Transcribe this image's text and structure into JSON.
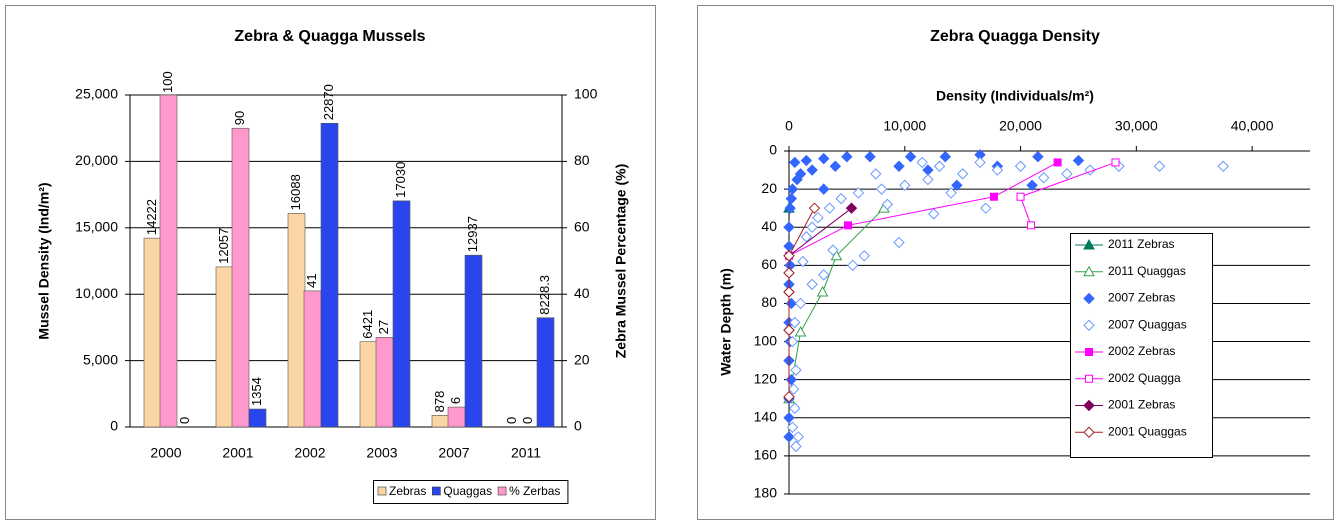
{
  "chart_data": [
    {
      "type": "bar",
      "title": "Zebra & Quagga Mussels",
      "y_label": "Mussel Density (Ind/m²)",
      "y2_label": "Zebra Mussel Percentage (%)",
      "categories": [
        "2000",
        "2001",
        "2002",
        "2003",
        "2007",
        "2011"
      ],
      "series": [
        {
          "name": "Zebras",
          "color": "#fcd5a4",
          "values": [
            14222,
            12057,
            16088,
            6421,
            878,
            0
          ]
        },
        {
          "name": "Quaggas",
          "color": "#2a45ee",
          "values": [
            0,
            1354,
            22870,
            17030,
            12937,
            8228.3
          ]
        },
        {
          "name": "% Zerbas",
          "color": "#ff99cc",
          "axis": "y2",
          "values": [
            100,
            90,
            41,
            27,
            6,
            0
          ]
        }
      ],
      "ylim": [
        0,
        25000
      ],
      "yticks": [
        0,
        {
          "value": 5000,
          "label": "5,000"
        },
        {
          "value": 10000,
          "label": "10,000"
        },
        {
          "value": 15000,
          "label": "15,000"
        },
        {
          "value": 20000,
          "label": "20,000"
        },
        {
          "value": 25000,
          "label": "25,000"
        }
      ],
      "y2lim": [
        0,
        100
      ],
      "y2ticks": [
        0,
        20,
        40,
        60,
        80,
        100
      ],
      "grid": true,
      "legend": "bottom"
    },
    {
      "type": "scatter",
      "title": "Zebra Quagga Density",
      "x_label": "Density (Individuals/m²)",
      "y_label": "Water Depth (m)",
      "xlim": [
        0,
        45000
      ],
      "xticks": [
        0,
        {
          "value": 10000,
          "label": "10,000"
        },
        {
          "value": 20000,
          "label": "20,000"
        },
        {
          "value": 30000,
          "label": "30,000"
        },
        {
          "value": 40000,
          "label": "40,000"
        }
      ],
      "ylim": [
        0,
        180
      ],
      "yticks": [
        0,
        20,
        40,
        60,
        80,
        100,
        120,
        140,
        160,
        180
      ],
      "y_inverted": true,
      "x_axis_position": "top",
      "grid": true,
      "legend": "right",
      "series": [
        {
          "name": "2011 Zebras",
          "color": "#007a5e",
          "marker": "triangle",
          "filled": true,
          "line": true,
          "x": [
            0
          ],
          "values": [
            30
          ]
        },
        {
          "name": "2011 Quaggas",
          "color": "#33a04a",
          "marker": "triangle",
          "filled": false,
          "line": true,
          "x": [
            8200,
            4100,
            2900,
            1000,
            0
          ],
          "values": [
            30,
            55,
            74,
            95,
            130
          ]
        },
        {
          "name": "2007 Zebras",
          "color": "#3366ff",
          "marker": "diamond",
          "filled": true,
          "line": false,
          "x": [
            16500,
            13500,
            10500,
            7000,
            5000,
            3000,
            1500,
            500,
            21500,
            25000,
            18000,
            12000,
            9500,
            4000,
            2000,
            700,
            300,
            200,
            100,
            0,
            0,
            100,
            0,
            200,
            0,
            100,
            0,
            200,
            0,
            0,
            0,
            14500,
            21000,
            3000,
            1000
          ],
          "values": [
            2,
            3,
            3,
            3,
            3,
            4,
            5,
            6,
            3,
            5,
            8,
            10,
            8,
            8,
            10,
            15,
            20,
            25,
            30,
            40,
            50,
            60,
            70,
            80,
            90,
            100,
            110,
            120,
            130,
            140,
            150,
            18,
            18,
            20,
            12
          ]
        },
        {
          "name": "2007 Quaggas",
          "color": "#6699ff",
          "marker": "diamond",
          "filled": false,
          "line": false,
          "x": [
            37500,
            32000,
            28500,
            26000,
            24000,
            22000,
            20000,
            18000,
            15000,
            12000,
            10000,
            8000,
            6000,
            4500,
            3500,
            2500,
            2000,
            1500,
            9500,
            6500,
            5500,
            3000,
            2000,
            1000,
            500,
            300,
            600,
            400,
            500,
            300,
            600,
            13000,
            16500,
            11500,
            7500,
            8500,
            12500,
            17000,
            14000,
            1200,
            3800,
            800
          ],
          "values": [
            8,
            8,
            8,
            10,
            12,
            14,
            8,
            10,
            12,
            15,
            18,
            20,
            22,
            25,
            30,
            35,
            40,
            45,
            48,
            55,
            60,
            65,
            70,
            80,
            90,
            100,
            115,
            125,
            135,
            145,
            155,
            8,
            6,
            6,
            12,
            28,
            33,
            30,
            22,
            58,
            52,
            150
          ]
        },
        {
          "name": "2002 Zebras",
          "color": "#ff00ff",
          "marker": "square",
          "filled": true,
          "line": true,
          "x": [
            23200,
            17700,
            5100,
            0
          ],
          "values": [
            6,
            24,
            39,
            55
          ]
        },
        {
          "name": "2002 Quagga",
          "color": "#ff00ff",
          "marker": "square",
          "filled": false,
          "line": true,
          "x": [
            28200,
            20000,
            20900
          ],
          "values": [
            6,
            24,
            39
          ]
        },
        {
          "name": "2001 Zebras",
          "color": "#800060",
          "marker": "diamond",
          "filled": true,
          "line": true,
          "x": [
            5400,
            0,
            0,
            0,
            0,
            0
          ],
          "values": [
            30,
            55,
            64,
            74,
            94,
            129
          ]
        },
        {
          "name": "2001 Quaggas",
          "color": "#a02020",
          "marker": "diamond",
          "filled": false,
          "line": true,
          "x": [
            2200,
            0,
            0,
            0,
            0,
            0
          ],
          "values": [
            30,
            55,
            64,
            74,
            94,
            129
          ]
        }
      ]
    }
  ]
}
